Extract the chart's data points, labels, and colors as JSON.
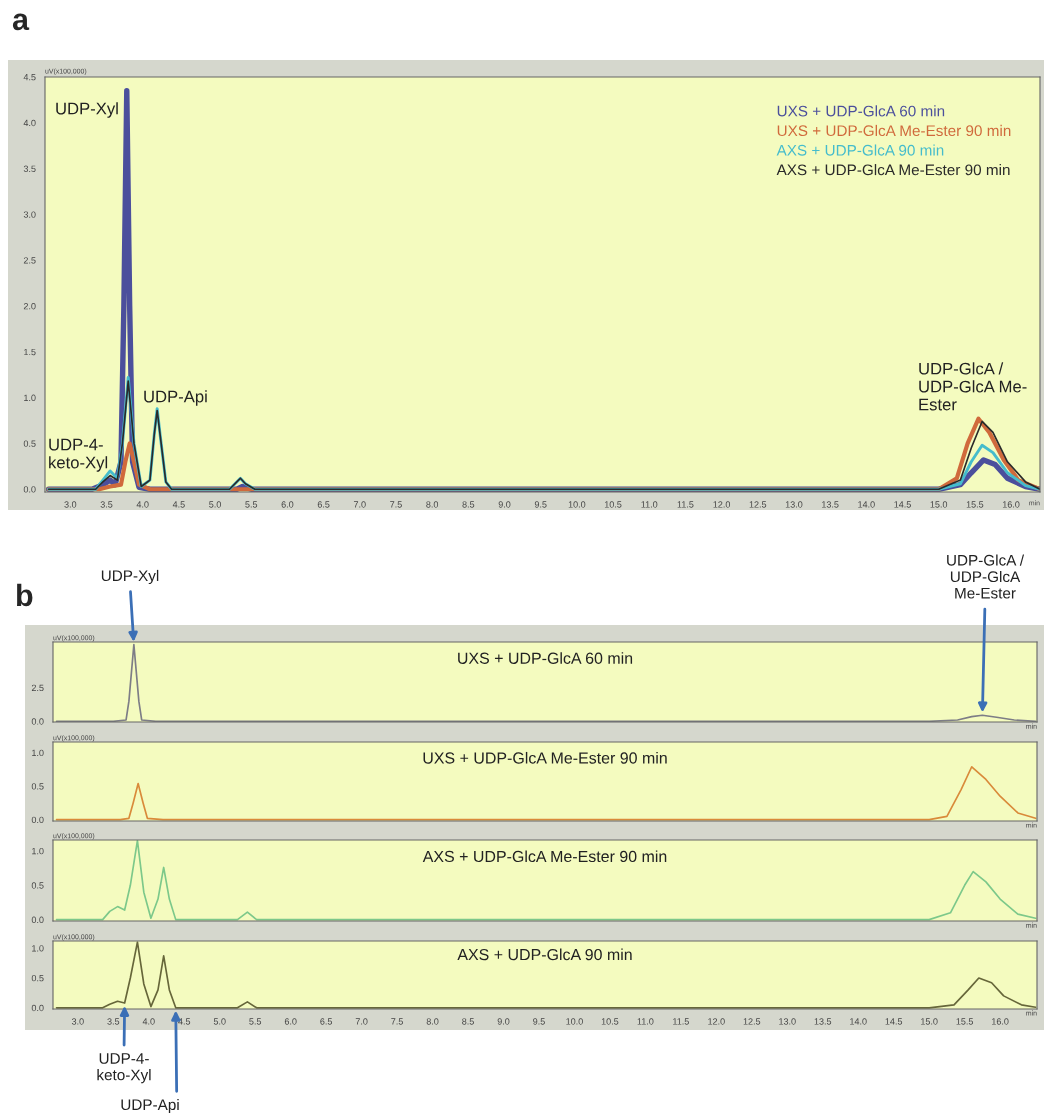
{
  "chart_data": [
    {
      "type": "line",
      "title": "a",
      "xlabel": "min",
      "ylabel": "uV(x100,000)",
      "xlim": [
        2.65,
        16.4
      ],
      "ylim": [
        -0.03,
        4.5
      ],
      "xticks": [
        {
          "value": 3,
          "label": "3.0"
        },
        3.5,
        {
          "value": 4,
          "label": "4.0"
        },
        4.5,
        {
          "value": 5,
          "label": "5.0"
        },
        5.5,
        {
          "value": 6,
          "label": "6.0"
        },
        6.5,
        {
          "value": 7,
          "label": "7.0"
        },
        7.5,
        {
          "value": 8,
          "label": "8.0"
        },
        8.5,
        {
          "value": 9,
          "label": "9.0"
        },
        9.5,
        {
          "value": 10,
          "label": "10.0"
        },
        10.5,
        {
          "value": 11,
          "label": "11.0"
        },
        11.5,
        {
          "value": 12,
          "label": "12.0"
        },
        12.5,
        {
          "value": 13,
          "label": "13.0"
        },
        13.5,
        {
          "value": 14,
          "label": "14.0"
        },
        14.5,
        {
          "value": 15,
          "label": "15.0"
        },
        15.5,
        {
          "value": 16,
          "label": "16.0"
        }
      ],
      "yticks": [
        {
          "value": 0,
          "label": "0.0"
        },
        0.5,
        {
          "value": 1,
          "label": "1.0"
        },
        1.5,
        {
          "value": 2,
          "label": "2.0"
        },
        2.5,
        {
          "value": 3,
          "label": "3.0"
        },
        3.5,
        {
          "value": 4,
          "label": "4.0"
        },
        4.5
      ],
      "legend": "top right",
      "series": [
        {
          "name": "UXS + UDP-GlcA 60 min",
          "color": "#4b4f9c",
          "x": [
            2.7,
            3.3,
            3.45,
            3.55,
            3.62,
            3.7,
            3.74,
            3.78,
            3.82,
            3.86,
            3.95,
            4.1,
            5.0,
            5.3,
            5.38,
            5.5,
            6.0,
            15.0,
            15.3,
            15.45,
            15.62,
            15.78,
            15.95,
            16.2,
            16.4
          ],
          "values": [
            0,
            0,
            0.05,
            0.1,
            0.05,
            0.3,
            2.0,
            4.35,
            2.0,
            0.3,
            0.02,
            0,
            0,
            0,
            0.03,
            0,
            0,
            0,
            0.05,
            0.18,
            0.32,
            0.27,
            0.12,
            0.03,
            0
          ]
        },
        {
          "name": "UXS + UDP-GlcA Me-Ester 90 min",
          "color": "#d06a3c",
          "x": [
            2.7,
            3.4,
            3.55,
            3.7,
            3.76,
            3.82,
            3.88,
            3.95,
            4.1,
            15.0,
            15.25,
            15.4,
            15.55,
            15.7,
            15.9,
            16.1,
            16.4
          ],
          "values": [
            0,
            0,
            0.03,
            0.05,
            0.3,
            0.5,
            0.3,
            0.05,
            0,
            0,
            0.12,
            0.5,
            0.77,
            0.62,
            0.32,
            0.1,
            0
          ]
        },
        {
          "name": "AXS + UDP-GlcA 90 min",
          "color": "#45bccc",
          "x": [
            2.7,
            3.35,
            3.45,
            3.55,
            3.65,
            3.72,
            3.8,
            3.88,
            3.98,
            4.1,
            4.16,
            4.2,
            4.24,
            4.32,
            4.4,
            5.2,
            5.3,
            5.35,
            5.42,
            5.55,
            15.0,
            15.3,
            15.45,
            15.6,
            15.75,
            15.95,
            16.2,
            16.4
          ],
          "values": [
            0,
            0,
            0.1,
            0.2,
            0.12,
            0.5,
            1.22,
            0.5,
            0.03,
            0.1,
            0.6,
            0.88,
            0.6,
            0.08,
            0,
            0,
            0.08,
            0.12,
            0.06,
            0,
            0,
            0.06,
            0.3,
            0.48,
            0.4,
            0.18,
            0.04,
            0
          ]
        },
        {
          "name": "AXS + UDP-GlcA Me-Ester 90 min",
          "color": "#2a2a2a",
          "x": [
            2.7,
            3.35,
            3.45,
            3.55,
            3.65,
            3.72,
            3.8,
            3.88,
            3.98,
            4.1,
            4.16,
            4.2,
            4.24,
            4.32,
            4.4,
            5.2,
            5.3,
            5.35,
            5.42,
            5.55,
            15.0,
            15.3,
            15.45,
            15.6,
            15.75,
            15.95,
            16.2,
            16.4
          ],
          "values": [
            0,
            0,
            0.08,
            0.15,
            0.1,
            0.5,
            1.18,
            0.5,
            0.03,
            0.1,
            0.6,
            0.86,
            0.6,
            0.08,
            0,
            0,
            0.08,
            0.12,
            0.06,
            0,
            0,
            0.1,
            0.45,
            0.74,
            0.62,
            0.3,
            0.08,
            0
          ]
        }
      ],
      "annotations": [
        {
          "text": "UDP-Xyl",
          "x": 3.78,
          "y": 4.35
        },
        {
          "text": "UDP-Api",
          "x": 4.2,
          "y": 0.88
        },
        {
          "text": "UDP-4-\nketo-Xyl",
          "x": 3.55,
          "y": 0.2
        },
        {
          "text": "UDP-GlcA /\nUDP-GlcA Me-\nEster",
          "x": 15.55,
          "y": 0.77
        }
      ]
    },
    {
      "type": "line",
      "title": "UXS + UDP-GlcA 60 min",
      "xlabel": "min",
      "ylabel": "uV(x100,000)",
      "xlim": [
        2.65,
        16.52
      ],
      "ylim": [
        -0.05,
        5.9
      ],
      "tick_labels": "y",
      "xticks": [
        3,
        3.5,
        4,
        4.5,
        5,
        5.5,
        6,
        6.5,
        7,
        7.5,
        8,
        8.5,
        9,
        9.5,
        10,
        10.5,
        11,
        11.5,
        12,
        12.5,
        13,
        13.5,
        14,
        14.5,
        15,
        15.5,
        16
      ],
      "yticks": [
        {
          "value": 0,
          "label": "0.0"
        },
        2.5
      ],
      "series": [
        {
          "color": "#7d7d86",
          "x": [
            2.7,
            3.5,
            3.68,
            3.72,
            3.79,
            3.86,
            3.9,
            4.1,
            15.0,
            15.4,
            15.6,
            15.75,
            15.95,
            16.2,
            16.5
          ],
          "values": [
            0,
            0,
            0.1,
            1.5,
            5.7,
            1.5,
            0.1,
            0,
            0,
            0.1,
            0.35,
            0.45,
            0.3,
            0.1,
            0
          ]
        }
      ],
      "annotations": [
        "b",
        {
          "text": "UDP-Xyl",
          "x": 3.79,
          "y": 5.7
        },
        {
          "text": "UDP-GlcA /\nUDP-GlcA\nMe-Ester",
          "x": 15.75,
          "y": 0.45
        }
      ]
    },
    {
      "type": "line",
      "title": "UXS + UDP-GlcA Me-Ester 90 min",
      "xlabel": "min",
      "ylabel": "uV(x100,000)",
      "xlim": [
        2.65,
        16.52
      ],
      "ylim": [
        -0.02,
        1.16
      ],
      "tick_labels": "y",
      "xticks": [
        3,
        3.5,
        4,
        4.5,
        5,
        5.5,
        6,
        6.5,
        7,
        7.5,
        8,
        8.5,
        9,
        9.5,
        10,
        10.5,
        11,
        11.5,
        12,
        12.5,
        13,
        13.5,
        14,
        14.5,
        15,
        15.5,
        16
      ],
      "yticks": [
        {
          "value": 0,
          "label": "0.0"
        },
        0.5,
        {
          "value": 1,
          "label": "1.0"
        }
      ],
      "series": [
        {
          "color": "#d98a3a",
          "x": [
            2.7,
            3.6,
            3.72,
            3.78,
            3.85,
            3.92,
            3.98,
            4.2,
            15.0,
            15.25,
            15.45,
            15.6,
            15.8,
            16.0,
            16.25,
            16.5
          ],
          "values": [
            0,
            0,
            0.02,
            0.25,
            0.54,
            0.25,
            0.02,
            0,
            0,
            0.05,
            0.45,
            0.79,
            0.6,
            0.35,
            0.1,
            0.02
          ]
        }
      ]
    },
    {
      "type": "line",
      "title": "AXS + UDP-GlcA Me-Ester 90 min",
      "xlabel": "min",
      "ylabel": "uV(x100,000)",
      "xlim": [
        2.65,
        16.52
      ],
      "ylim": [
        -0.02,
        1.16
      ],
      "tick_labels": "y",
      "xticks": [
        3,
        3.5,
        4,
        4.5,
        5,
        5.5,
        6,
        6.5,
        7,
        7.5,
        8,
        8.5,
        9,
        9.5,
        10,
        10.5,
        11,
        11.5,
        12,
        12.5,
        13,
        13.5,
        14,
        14.5,
        15,
        15.5,
        16
      ],
      "yticks": [
        {
          "value": 0,
          "label": "0.0"
        },
        0.5,
        {
          "value": 1,
          "label": "1.0"
        }
      ],
      "series": [
        {
          "color": "#7cc88a",
          "x": [
            2.7,
            3.35,
            3.45,
            3.56,
            3.66,
            3.74,
            3.84,
            3.93,
            4.03,
            4.13,
            4.21,
            4.29,
            4.38,
            5.25,
            5.39,
            5.52,
            15.0,
            15.3,
            15.5,
            15.62,
            15.8,
            16.0,
            16.25,
            16.5
          ],
          "values": [
            0,
            0,
            0.12,
            0.19,
            0.14,
            0.5,
            1.15,
            0.4,
            0.02,
            0.3,
            0.76,
            0.3,
            0,
            0,
            0.11,
            0,
            0,
            0.1,
            0.5,
            0.7,
            0.55,
            0.3,
            0.08,
            0.02
          ]
        }
      ]
    },
    {
      "type": "line",
      "title": "AXS + UDP-GlcA 90 min",
      "xlabel": "min",
      "ylabel": "uV(x100,000)",
      "xlim": [
        2.65,
        16.52
      ],
      "ylim": [
        -0.02,
        1.12
      ],
      "xticks": [
        {
          "value": 3,
          "label": "3.0"
        },
        3.5,
        {
          "value": 4,
          "label": "4.0"
        },
        4.5,
        {
          "value": 5,
          "label": "5.0"
        },
        5.5,
        {
          "value": 6,
          "label": "6.0"
        },
        6.5,
        {
          "value": 7,
          "label": "7.0"
        },
        7.5,
        {
          "value": 8,
          "label": "8.0"
        },
        8.5,
        {
          "value": 9,
          "label": "9.0"
        },
        9.5,
        {
          "value": 10,
          "label": "10.0"
        },
        10.5,
        {
          "value": 11,
          "label": "11.0"
        },
        11.5,
        {
          "value": 12,
          "label": "12.0"
        },
        12.5,
        {
          "value": 13,
          "label": "13.0"
        },
        13.5,
        {
          "value": 14,
          "label": "14.0"
        },
        14.5,
        {
          "value": 15,
          "label": "15.0"
        },
        15.5,
        {
          "value": 16,
          "label": "16.0"
        }
      ],
      "yticks": [
        {
          "value": 0,
          "label": "0.0"
        },
        0.5,
        {
          "value": 1,
          "label": "1.0"
        }
      ],
      "series": [
        {
          "color": "#66663a",
          "x": [
            2.7,
            3.35,
            3.45,
            3.56,
            3.66,
            3.74,
            3.84,
            3.93,
            4.03,
            4.13,
            4.21,
            4.29,
            4.38,
            5.25,
            5.39,
            5.52,
            15.0,
            15.35,
            15.55,
            15.7,
            15.88,
            16.05,
            16.3,
            16.5
          ],
          "values": [
            0,
            0,
            0.06,
            0.11,
            0.08,
            0.5,
            1.1,
            0.4,
            0.02,
            0.3,
            0.87,
            0.3,
            0,
            0,
            0.1,
            0,
            0,
            0.05,
            0.3,
            0.5,
            0.42,
            0.2,
            0.05,
            0.01
          ]
        }
      ],
      "annotations": [
        {
          "text": "UDP-4-\nketo-Xyl",
          "x": 3.66,
          "y": 0.08
        },
        {
          "text": "UDP-Api",
          "x": 4.38,
          "y": 0
        }
      ]
    }
  ]
}
